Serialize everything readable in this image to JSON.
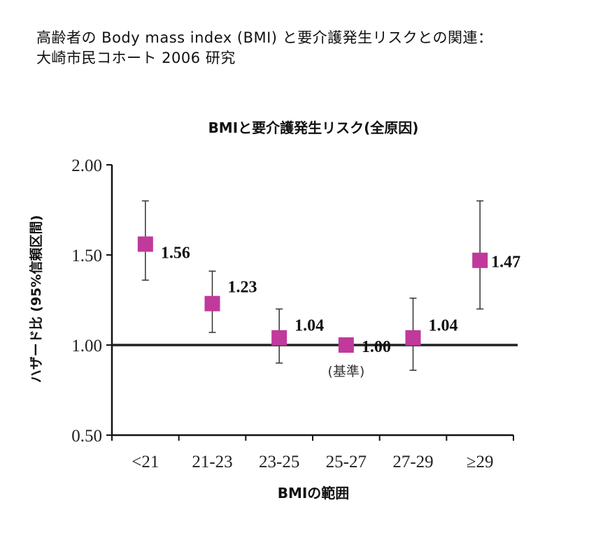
{
  "heading": {
    "line1": "高齢者の Body mass index (BMI) と要介護発生リスクとの関連：",
    "line2": "大崎市民コホート 2006 研究"
  },
  "chart_data": {
    "type": "scatter",
    "title": "BMIと要介護発生リスク(全原因)",
    "xlabel": "BMIの範囲",
    "ylabel": "ハザード比 (95%信頼区間)",
    "categories": [
      "<21",
      "21-23",
      "23-25",
      "25-27",
      "27-29",
      "≥29"
    ],
    "values": [
      1.56,
      1.23,
      1.04,
      1.0,
      1.04,
      1.47
    ],
    "value_labels": [
      "1.56",
      "1.23",
      "1.04",
      "1.00",
      "1.04",
      "1.47"
    ],
    "ci_lower": [
      1.36,
      1.07,
      0.9,
      null,
      0.86,
      1.2
    ],
    "ci_upper": [
      1.8,
      1.41,
      1.2,
      null,
      1.26,
      1.8
    ],
    "ylim": [
      0.5,
      2.0
    ],
    "yticks": [
      0.5,
      1.0,
      1.5,
      2.0
    ],
    "ytick_labels": [
      "0.50",
      "1.00",
      "1.50",
      "2.00"
    ],
    "reference_value": 1.0,
    "reference_label": "(基準)",
    "marker_color": "#c0399b",
    "reference_line_color": "#222222",
    "grid": false
  }
}
